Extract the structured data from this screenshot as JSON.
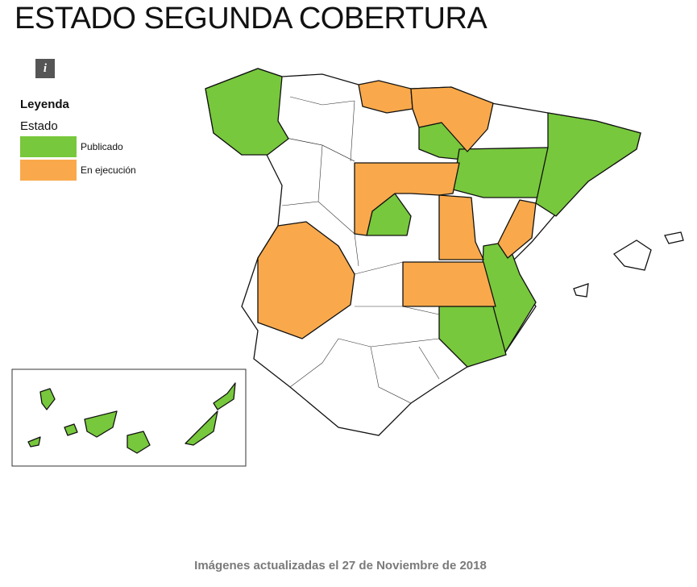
{
  "header": {
    "title": "ESTADO SEGUNDA COBERTURA",
    "info_icon": "i"
  },
  "legend": {
    "title": "Leyenda",
    "subtitle": "Estado",
    "items": [
      {
        "label": "Publicado",
        "color": "#77c83c"
      },
      {
        "label": "En ejecución",
        "color": "#f9a94b"
      }
    ]
  },
  "footer": "Imágenes actualizadas el 27 de Noviembre de 2018"
}
